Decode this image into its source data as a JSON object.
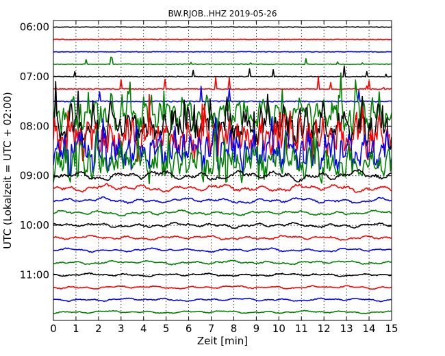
{
  "chart_data": {
    "type": "line",
    "title": "BW.RJOB..HHZ 2019-05-26",
    "xlabel": "Zeit  [min]",
    "ylabel": "UTC (Lokalzeit = UTC + 02:00)",
    "xlim": [
      0,
      15
    ],
    "x_ticks": [
      "0",
      "1",
      "2",
      "3",
      "4",
      "5",
      "6",
      "7",
      "8",
      "9",
      "10",
      "11",
      "12",
      "13",
      "14",
      "15"
    ],
    "y_ticks": [
      "06:00",
      "07:00",
      "08:00",
      "09:00",
      "10:00",
      "11:00"
    ],
    "grid": true,
    "trace_interval_min": 15,
    "first_trace": "06:00",
    "last_trace": "11:45",
    "trace_colors": [
      "#000000",
      "#ff0000",
      "#0000ff",
      "#008000"
    ],
    "traces": [
      {
        "start": "06:00",
        "color": "#000000",
        "activity": 0.05
      },
      {
        "start": "06:15",
        "color": "#ff0000",
        "activity": 0.05
      },
      {
        "start": "06:30",
        "color": "#0000ff",
        "activity": 0.05
      },
      {
        "start": "06:45",
        "color": "#008000",
        "activity": 0.07
      },
      {
        "start": "07:00",
        "color": "#000000",
        "activity": 0.1
      },
      {
        "start": "07:15",
        "color": "#ff0000",
        "activity": 0.12
      },
      {
        "start": "07:30",
        "color": "#0000ff",
        "activity": 0.15
      },
      {
        "start": "07:45",
        "color": "#008000",
        "activity": 0.9
      },
      {
        "start": "08:00",
        "color": "#000000",
        "activity": 1.0
      },
      {
        "start": "08:15",
        "color": "#ff0000",
        "activity": 1.0
      },
      {
        "start": "08:30",
        "color": "#0000ff",
        "activity": 1.0
      },
      {
        "start": "08:45",
        "color": "#008000",
        "activity": 0.9
      },
      {
        "start": "09:00",
        "color": "#000000",
        "activity": 0.8
      },
      {
        "start": "09:15",
        "color": "#ff0000",
        "activity": 0.6
      },
      {
        "start": "09:30",
        "color": "#0000ff",
        "activity": 0.45
      },
      {
        "start": "09:45",
        "color": "#008000",
        "activity": 0.4
      },
      {
        "start": "10:00",
        "color": "#000000",
        "activity": 0.4
      },
      {
        "start": "10:15",
        "color": "#ff0000",
        "activity": 0.35
      },
      {
        "start": "10:30",
        "color": "#0000ff",
        "activity": 0.3
      },
      {
        "start": "10:45",
        "color": "#008000",
        "activity": 0.3
      },
      {
        "start": "11:00",
        "color": "#000000",
        "activity": 0.25
      },
      {
        "start": "11:15",
        "color": "#ff0000",
        "activity": 0.25
      },
      {
        "start": "11:30",
        "color": "#0000ff",
        "activity": 0.25
      },
      {
        "start": "11:45",
        "color": "#008000",
        "activity": 0.22
      }
    ]
  }
}
